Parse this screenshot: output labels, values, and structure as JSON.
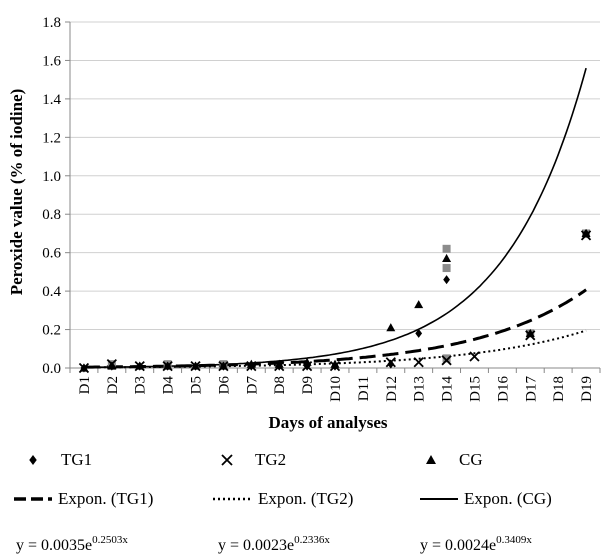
{
  "chart_data": {
    "type": "scatter",
    "title": "",
    "xlabel": "Days of analyses",
    "ylabel": "Peroxide value  (%  of iodine)",
    "categories": [
      "D1",
      "D2",
      "D3",
      "D4",
      "D5",
      "D6",
      "D7",
      "D8",
      "D9",
      "D10",
      "D11",
      "D12",
      "D13",
      "D14",
      "D15",
      "D16",
      "D17",
      "D18",
      "D19"
    ],
    "y_ticks": [
      "0.0",
      "0.2",
      "0.4",
      "0.6",
      "0.8",
      "1.0",
      "1.2",
      "1.4",
      "1.6",
      "1.8"
    ],
    "ylim": [
      0,
      1.8
    ],
    "grid": "horizontal",
    "legend_position": "bottom",
    "series": [
      {
        "name": "TG1",
        "marker": "diamond",
        "points": [
          [
            1,
            0.0
          ],
          [
            2,
            0.01
          ],
          [
            3,
            0.01
          ],
          [
            4,
            0.01
          ],
          [
            5,
            0.01
          ],
          [
            6,
            0.01
          ],
          [
            7,
            0.01
          ],
          [
            8,
            0.01
          ],
          [
            9,
            0.01
          ],
          [
            10,
            0.01
          ],
          [
            12,
            0.02
          ],
          [
            13,
            0.18
          ],
          [
            14,
            0.46
          ],
          [
            19,
            0.7
          ]
        ]
      },
      {
        "name": "TG2",
        "marker": "x",
        "points": [
          [
            1,
            0.0
          ],
          [
            2,
            0.02
          ],
          [
            3,
            0.01
          ],
          [
            4,
            0.01
          ],
          [
            5,
            0.01
          ],
          [
            6,
            0.01
          ],
          [
            7,
            0.01
          ],
          [
            8,
            0.01
          ],
          [
            9,
            0.01
          ],
          [
            10,
            0.01
          ],
          [
            12,
            0.03
          ],
          [
            13,
            0.03
          ],
          [
            14,
            0.04
          ],
          [
            15,
            0.06
          ],
          [
            17,
            0.17
          ],
          [
            19,
            0.69
          ]
        ]
      },
      {
        "name": "CG",
        "marker": "triangle",
        "points": [
          [
            1,
            0.0
          ],
          [
            2,
            0.01
          ],
          [
            3,
            0.01
          ],
          [
            4,
            0.01
          ],
          [
            5,
            0.01
          ],
          [
            6,
            0.01
          ],
          [
            7,
            0.02
          ],
          [
            8,
            0.02
          ],
          [
            9,
            0.03
          ],
          [
            10,
            0.02
          ],
          [
            12,
            0.21
          ],
          [
            13,
            0.33
          ],
          [
            14,
            0.57
          ],
          [
            17,
            0.18
          ],
          [
            19,
            0.7
          ]
        ]
      }
    ],
    "grey_markers": {
      "name": "",
      "points": [
        [
          14,
          0.62
        ],
        [
          14,
          0.52
        ],
        [
          14,
          0.05
        ],
        [
          17,
          0.18
        ],
        [
          19,
          0.7
        ],
        [
          2,
          0.02
        ],
        [
          4,
          0.02
        ],
        [
          6,
          0.02
        ]
      ]
    },
    "trendlines": [
      {
        "name": "Expon. (TG1)",
        "a": 0.0035,
        "b": 0.2503,
        "style": "dashed",
        "equation": "y = 0.0035e",
        "exponent": "0.2503x"
      },
      {
        "name": "Expon. (TG2)",
        "a": 0.0023,
        "b": 0.2336,
        "style": "dotted",
        "equation": "y = 0.0023e",
        "exponent": "0.2336x"
      },
      {
        "name": "Expon. (CG)",
        "a": 0.0024,
        "b": 0.3409,
        "style": "solid",
        "equation": "y = 0.0024e",
        "exponent": "0.3409x"
      }
    ]
  },
  "colors": {
    "marker": "#000000",
    "marker_grey": "#8c8c8c",
    "grid": "#d0d0d0",
    "axis": "#888888"
  }
}
